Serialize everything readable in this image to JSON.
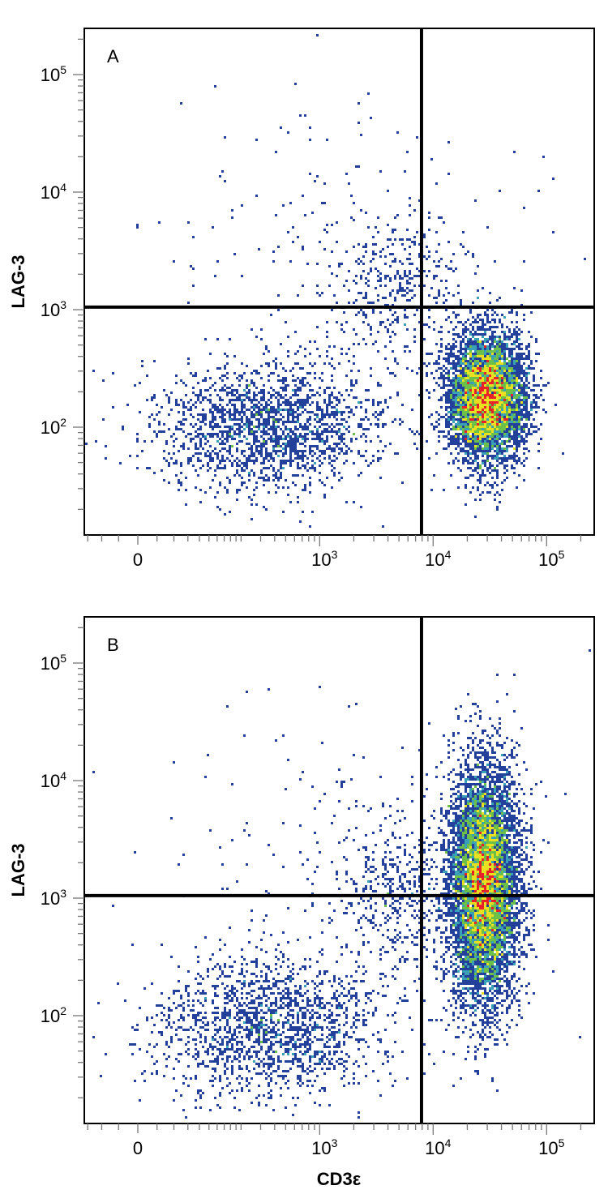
{
  "chart_data": {
    "type": "scatter",
    "style": "flow cytometry pseudocolor density dot plot",
    "x_scale": "biexponential (log above ~10^3, linear near 0)",
    "y_scale": "log",
    "xlabel": "CD3ε",
    "ylabel": "LAG-3",
    "xlim": [
      -65,
      270000
    ],
    "ylim": [
      13,
      250000
    ],
    "x_ticks": [
      {
        "value": 0,
        "label": "0"
      },
      {
        "value": 1000,
        "label": "10^3"
      },
      {
        "value": 10000,
        "label": "10^4"
      },
      {
        "value": 100000,
        "label": "10^5"
      }
    ],
    "y_ticks": [
      {
        "value": 100,
        "label": "10^2"
      },
      {
        "value": 1000,
        "label": "10^3"
      },
      {
        "value": 10000,
        "label": "10^4"
      },
      {
        "value": 100000,
        "label": "10^5"
      }
    ],
    "density_colors": [
      "#23409a",
      "#3aa0b8",
      "#6cc04a",
      "#e8e020",
      "#e8202a"
    ],
    "grid": false,
    "legend": "none",
    "panels": [
      {
        "label": "A",
        "quadrant_gate": {
          "x": 7900,
          "y": 1050
        },
        "populations": [
          {
            "x_center": 350,
            "y_center": 100,
            "x_sd_decades": 0.5,
            "y_sd_decades": 0.28,
            "count": 1900
          },
          {
            "x_center": 30000,
            "y_center": 180,
            "x_sd_decades": 0.17,
            "y_sd_decades": 0.27,
            "count": 6000
          },
          {
            "x_center": 5000,
            "y_center": 1500,
            "x_sd_decades": 0.3,
            "y_sd_decades": 0.3,
            "count": 350
          },
          {
            "x_center": 2000,
            "y_center": 3000,
            "x_sd_decades": 0.8,
            "y_sd_decades": 0.7,
            "count": 220
          }
        ]
      },
      {
        "label": "B",
        "quadrant_gate": {
          "x": 7900,
          "y": 1050
        },
        "populations": [
          {
            "x_center": 350,
            "y_center": 80,
            "x_sd_decades": 0.5,
            "y_sd_decades": 0.3,
            "count": 1700
          },
          {
            "x_center": 28000,
            "y_center": 1300,
            "x_sd_decades": 0.15,
            "y_sd_decades": 0.5,
            "count": 8000
          },
          {
            "x_center": 5000,
            "y_center": 1000,
            "x_sd_decades": 0.3,
            "y_sd_decades": 0.35,
            "count": 450
          },
          {
            "x_center": 2000,
            "y_center": 2000,
            "x_sd_decades": 0.8,
            "y_sd_decades": 0.7,
            "count": 200
          }
        ]
      }
    ]
  }
}
